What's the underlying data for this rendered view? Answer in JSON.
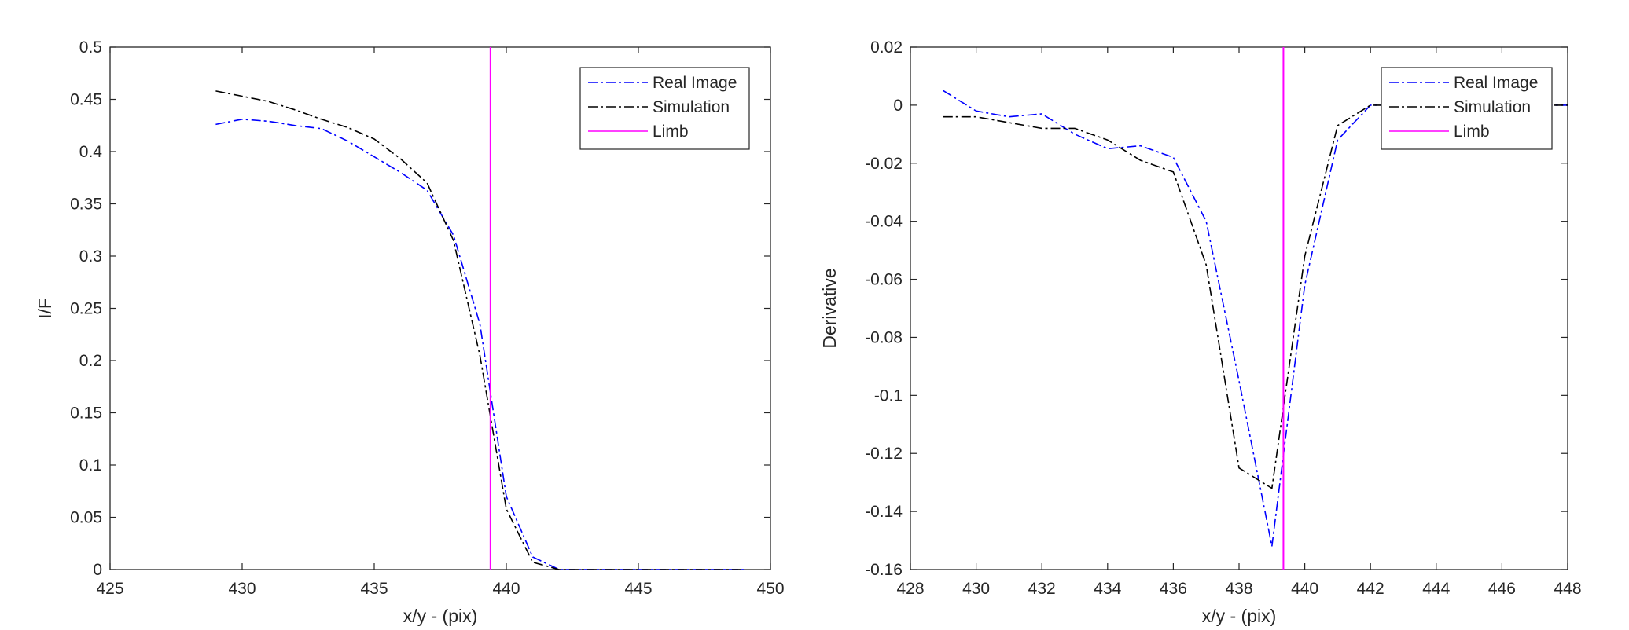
{
  "chart_data": [
    {
      "type": "line",
      "title": "",
      "xlabel": "x/y - (pix)",
      "ylabel": "I/F",
      "xlim": [
        425,
        450
      ],
      "ylim": [
        0,
        0.5
      ],
      "xticks": [
        "425",
        "430",
        "435",
        "440",
        "445",
        "450"
      ],
      "yticks": [
        "0",
        "0.05",
        "0.1",
        "0.15",
        "0.2",
        "0.25",
        "0.3",
        "0.35",
        "0.4",
        "0.45",
        "0.5"
      ],
      "grid": false,
      "legend_position": "top-right",
      "series": [
        {
          "name": "Real Image",
          "color": "#0000ff",
          "style": "dash-dot",
          "x": [
            429,
            430,
            431,
            432,
            433,
            434,
            435,
            436,
            437,
            438,
            439,
            440,
            441,
            442,
            443,
            444,
            445,
            446,
            447,
            448,
            449
          ],
          "y": [
            0.426,
            0.431,
            0.429,
            0.425,
            0.422,
            0.41,
            0.395,
            0.38,
            0.363,
            0.32,
            0.235,
            0.07,
            0.012,
            0,
            0,
            0,
            0,
            0,
            0,
            0,
            0
          ]
        },
        {
          "name": "Simulation",
          "color": "#000000",
          "style": "dash-dot",
          "x": [
            429,
            430,
            431,
            432,
            433,
            434,
            435,
            436,
            437,
            438,
            439,
            440,
            441,
            442,
            443,
            444,
            445,
            446,
            447,
            448,
            449
          ],
          "y": [
            0.458,
            0.453,
            0.448,
            0.44,
            0.431,
            0.423,
            0.412,
            0.393,
            0.37,
            0.315,
            0.205,
            0.058,
            0.007,
            0,
            0,
            0,
            0,
            0,
            0,
            0,
            0
          ]
        }
      ],
      "vline": {
        "name": "Limb",
        "x": 439.4,
        "color": "#ff00ff"
      }
    },
    {
      "type": "line",
      "title": "",
      "xlabel": "x/y - (pix)",
      "ylabel": "Derivative",
      "xlim": [
        428,
        448
      ],
      "ylim": [
        -0.16,
        0.02
      ],
      "xticks": [
        "428",
        "430",
        "432",
        "434",
        "436",
        "438",
        "440",
        "442",
        "444",
        "446",
        "448"
      ],
      "yticks": [
        "-0.16",
        "-0.14",
        "-0.12",
        "-0.1",
        "-0.08",
        "-0.06",
        "-0.04",
        "-0.02",
        "0",
        "0.02"
      ],
      "grid": false,
      "legend_position": "top-right",
      "series": [
        {
          "name": "Real Image",
          "color": "#0000ff",
          "style": "dash-dot",
          "x": [
            429,
            430,
            431,
            432,
            433,
            434,
            435,
            436,
            437,
            438,
            439,
            440,
            441,
            442,
            443,
            444,
            445,
            446,
            447,
            448
          ],
          "y": [
            0.005,
            -0.002,
            -0.004,
            -0.003,
            -0.01,
            -0.015,
            -0.014,
            -0.018,
            -0.04,
            -0.095,
            -0.152,
            -0.062,
            -0.012,
            0,
            0,
            0,
            0,
            0,
            0,
            0
          ]
        },
        {
          "name": "Simulation",
          "color": "#000000",
          "style": "dash-dot",
          "x": [
            429,
            430,
            431,
            432,
            433,
            434,
            435,
            436,
            437,
            438,
            439,
            440,
            441,
            442,
            443,
            444,
            445,
            446,
            447,
            448
          ],
          "y": [
            -0.004,
            -0.004,
            -0.006,
            -0.008,
            -0.008,
            -0.012,
            -0.019,
            -0.023,
            -0.055,
            -0.125,
            -0.132,
            -0.052,
            -0.007,
            0,
            0,
            0,
            0,
            0,
            0,
            0
          ]
        }
      ],
      "vline": {
        "name": "Limb",
        "x": 439.35,
        "color": "#ff00ff"
      }
    }
  ]
}
